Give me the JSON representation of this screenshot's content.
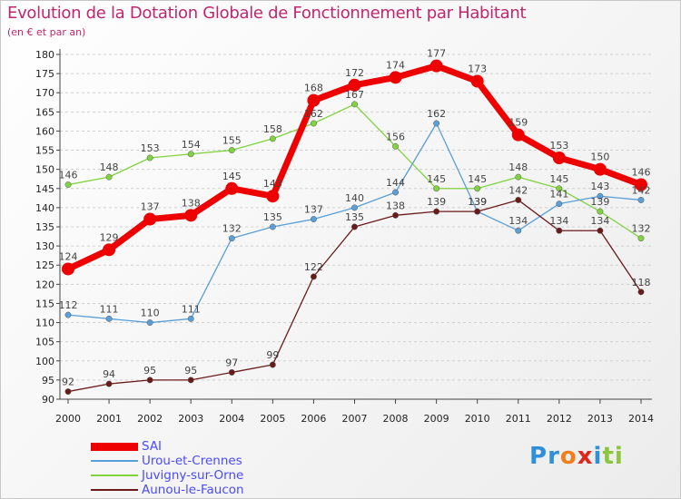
{
  "title": "Evolution de la Dotation Globale de Fonctionnement par Habitant",
  "subtitle": "(en € et par an)",
  "logo": {
    "text": "Proxiti",
    "letters": [
      {
        "ch": "P",
        "color": "#2f8fd8"
      },
      {
        "ch": "r",
        "color": "#2f8fd8"
      },
      {
        "ch": "o",
        "color": "#f07f1b"
      },
      {
        "ch": "x",
        "color": "#e0251b"
      },
      {
        "ch": "i",
        "color": "#2f8fd8"
      },
      {
        "ch": "t",
        "color": "#8cc63f"
      },
      {
        "ch": "i",
        "color": "#8cc63f"
      }
    ]
  },
  "chart_data": {
    "type": "line",
    "x": [
      2000,
      2001,
      2002,
      2003,
      2004,
      2005,
      2006,
      2007,
      2008,
      2009,
      2010,
      2011,
      2012,
      2013,
      2014
    ],
    "ylim": [
      90,
      180
    ],
    "yticks": [
      90,
      95,
      100,
      105,
      110,
      115,
      120,
      125,
      130,
      135,
      140,
      145,
      150,
      155,
      160,
      165,
      170,
      175,
      180
    ],
    "grid": "horizontal dashed",
    "legend_position": "bottom-left",
    "series": [
      {
        "name": "Juvigny-sur-Orne",
        "color": "#7fd33f",
        "values": [
          146,
          148,
          153,
          154,
          155,
          158,
          162,
          167,
          156,
          145,
          145,
          148,
          145,
          139,
          132
        ]
      },
      {
        "name": "Urou-et-Crennes",
        "color": "#5a9fd6",
        "values": [
          112,
          111,
          110,
          111,
          132,
          135,
          137,
          140,
          144,
          162,
          139,
          134,
          141,
          143,
          142
        ]
      },
      {
        "name": "Aunou-le-Faucon",
        "color": "#6b1a1a",
        "values": [
          92,
          94,
          95,
          95,
          97,
          99,
          122,
          135,
          138,
          139,
          139,
          142,
          134,
          134,
          118
        ]
      },
      {
        "name": "SAI",
        "color": "#ee0000",
        "values": [
          124,
          129,
          137,
          138,
          145,
          143,
          168,
          172,
          174,
          177,
          173,
          159,
          153,
          150,
          146
        ]
      }
    ]
  },
  "legend": [
    {
      "label": "SAI",
      "color": "#ee0000",
      "thickness": 9
    },
    {
      "label": "Urou-et-Crennes",
      "color": "#5a9fd6",
      "thickness": 2
    },
    {
      "label": "Juvigny-sur-Orne",
      "color": "#7fd33f",
      "thickness": 2
    },
    {
      "label": "Aunou-le-Faucon",
      "color": "#6b1a1a",
      "thickness": 2
    }
  ]
}
